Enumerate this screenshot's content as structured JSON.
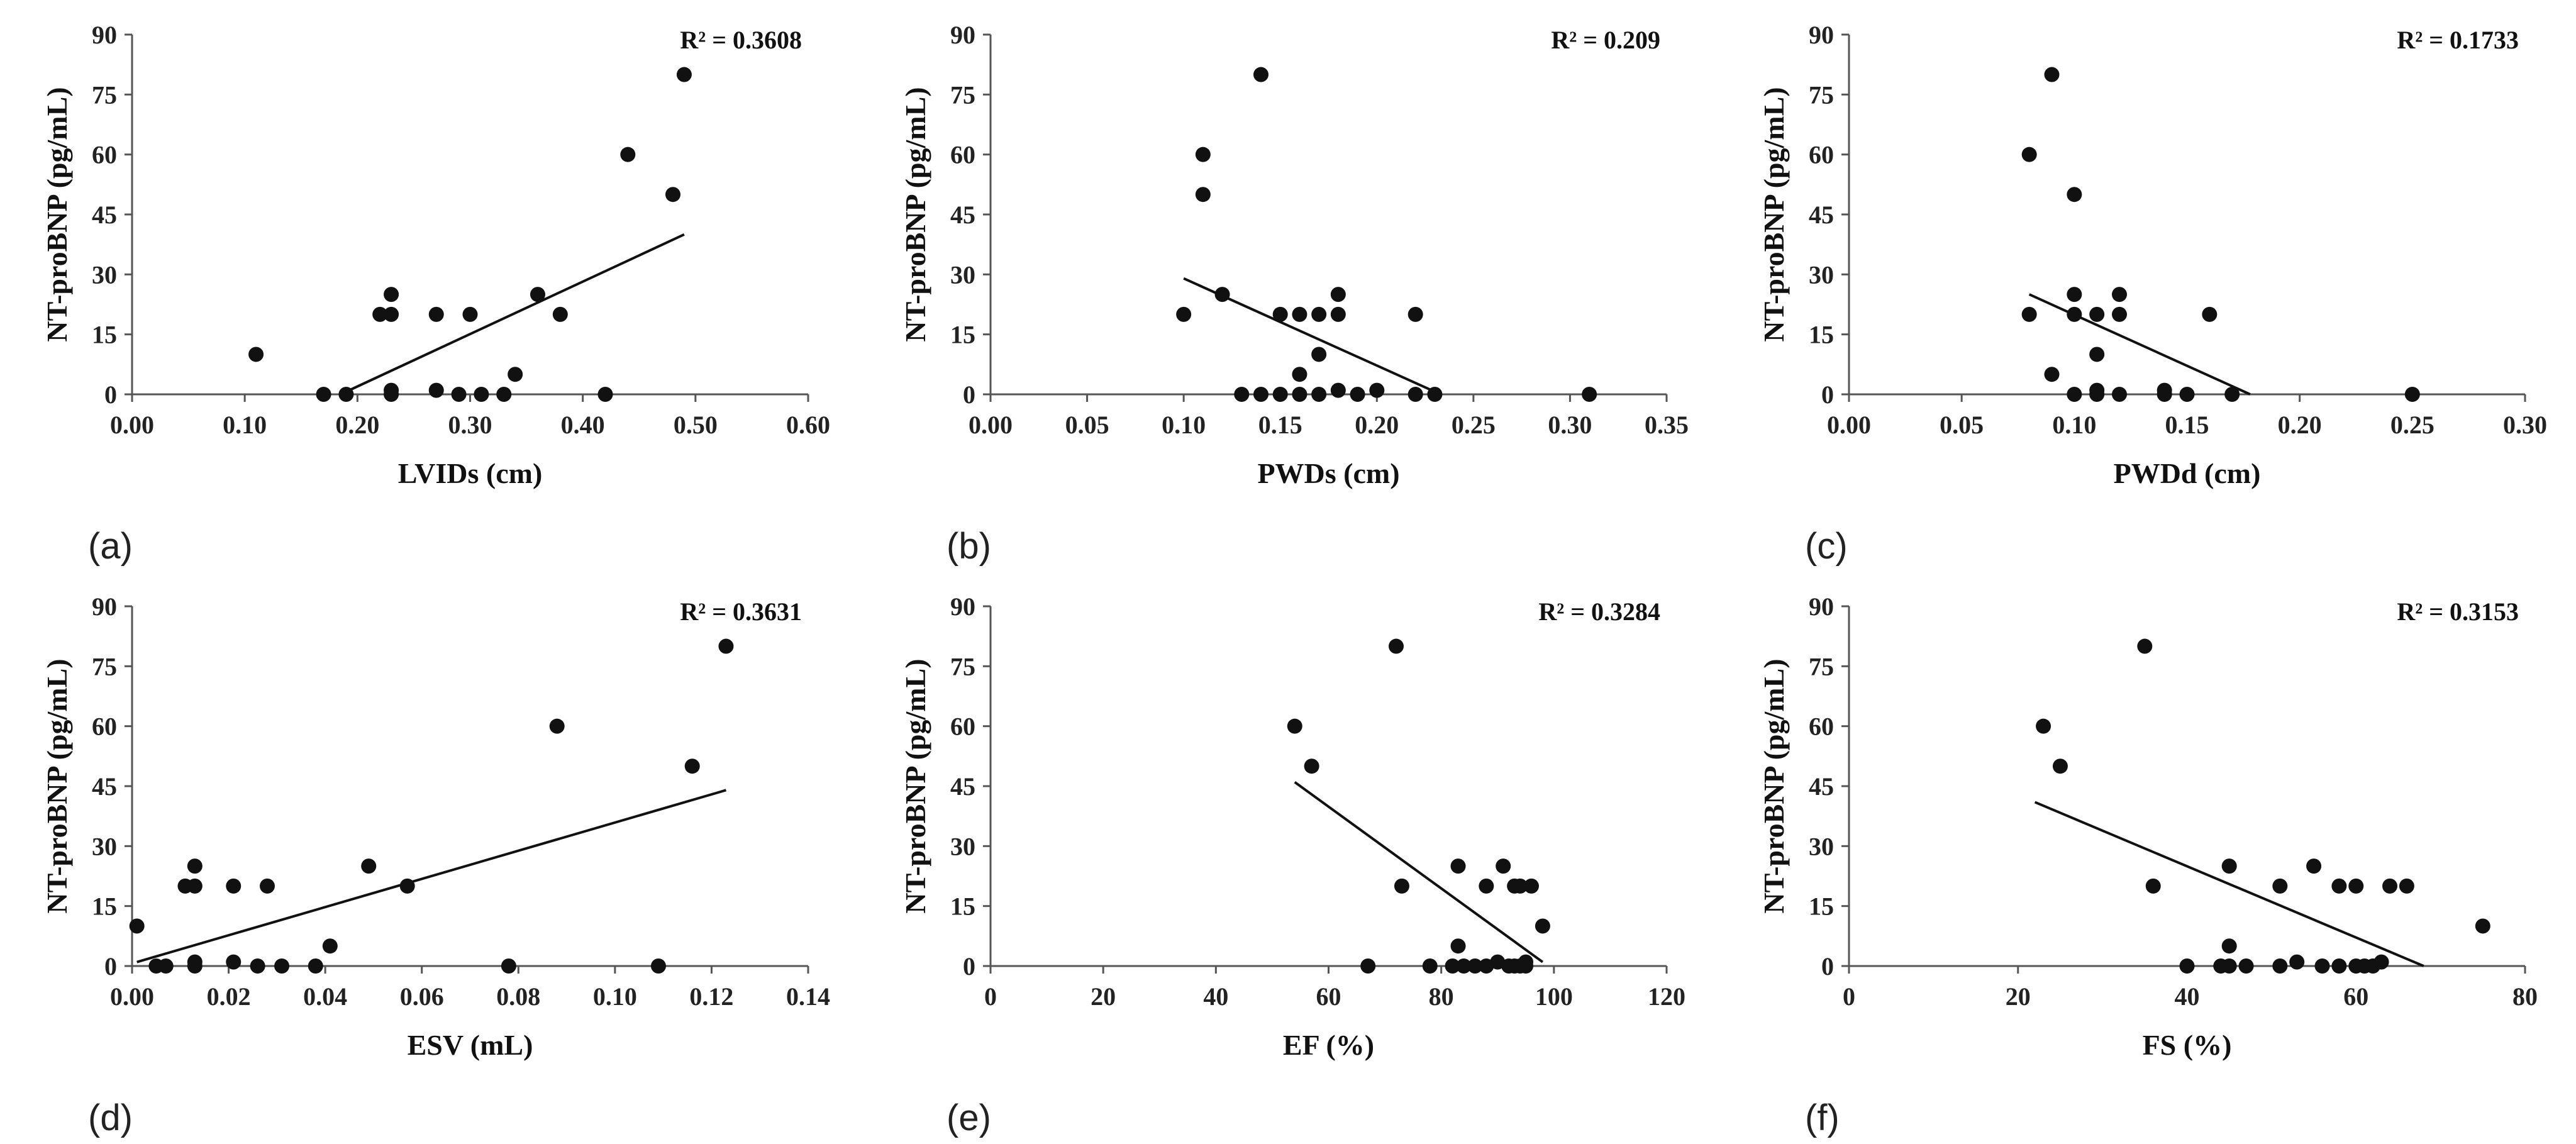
{
  "chart_data": [
    {
      "type": "scatter",
      "panel_label": "(a)",
      "xlabel": "LVIDs (cm)",
      "ylabel": "NT-proBNP (pg/mL)",
      "xlim": [
        0,
        0.6
      ],
      "ylim": [
        0,
        90
      ],
      "xticks": [
        "0.00",
        "0.10",
        "0.20",
        "0.30",
        "0.40",
        "0.50",
        "0.60"
      ],
      "yticks": [
        "0",
        "15",
        "30",
        "45",
        "60",
        "75",
        "90"
      ],
      "r2_text": "R² = 0.3608",
      "trendline": [
        [
          0.185,
          0
        ],
        [
          0.49,
          40
        ]
      ],
      "points": [
        [
          0.11,
          10
        ],
        [
          0.17,
          0
        ],
        [
          0.19,
          0
        ],
        [
          0.22,
          20
        ],
        [
          0.23,
          20
        ],
        [
          0.23,
          25
        ],
        [
          0.23,
          1
        ],
        [
          0.23,
          0
        ],
        [
          0.27,
          20
        ],
        [
          0.27,
          1
        ],
        [
          0.29,
          0
        ],
        [
          0.3,
          20
        ],
        [
          0.31,
          0
        ],
        [
          0.33,
          0
        ],
        [
          0.34,
          5
        ],
        [
          0.36,
          25
        ],
        [
          0.38,
          20
        ],
        [
          0.42,
          0
        ],
        [
          0.44,
          60
        ],
        [
          0.48,
          50
        ],
        [
          0.49,
          80
        ]
      ]
    },
    {
      "type": "scatter",
      "panel_label": "(b)",
      "xlabel": "PWDs (cm)",
      "ylabel": "NT-proBNP (pg/mL)",
      "xlim": [
        0,
        0.35
      ],
      "ylim": [
        0,
        90
      ],
      "xticks": [
        "0.00",
        "0.05",
        "0.10",
        "0.15",
        "0.20",
        "0.25",
        "0.30",
        "0.35"
      ],
      "yticks": [
        "0",
        "15",
        "30",
        "45",
        "60",
        "75",
        "90"
      ],
      "r2_text": "R² = 0.209",
      "trendline": [
        [
          0.1,
          29
        ],
        [
          0.233,
          0
        ]
      ],
      "points": [
        [
          0.1,
          20
        ],
        [
          0.11,
          60
        ],
        [
          0.11,
          50
        ],
        [
          0.12,
          25
        ],
        [
          0.13,
          0
        ],
        [
          0.14,
          80
        ],
        [
          0.14,
          0
        ],
        [
          0.15,
          20
        ],
        [
          0.15,
          0
        ],
        [
          0.16,
          20
        ],
        [
          0.16,
          5
        ],
        [
          0.16,
          0
        ],
        [
          0.17,
          20
        ],
        [
          0.17,
          10
        ],
        [
          0.17,
          0
        ],
        [
          0.18,
          25
        ],
        [
          0.18,
          20
        ],
        [
          0.18,
          1
        ],
        [
          0.19,
          0
        ],
        [
          0.2,
          1
        ],
        [
          0.22,
          20
        ],
        [
          0.22,
          0
        ],
        [
          0.23,
          0
        ],
        [
          0.31,
          0
        ]
      ]
    },
    {
      "type": "scatter",
      "panel_label": "(c)",
      "xlabel": "PWDd (cm)",
      "ylabel": "NT-proBNP (pg/mL)",
      "xlim": [
        0,
        0.3
      ],
      "ylim": [
        0,
        90
      ],
      "xticks": [
        "0.00",
        "0.05",
        "0.10",
        "0.15",
        "0.20",
        "0.25",
        "0.30"
      ],
      "yticks": [
        "0",
        "15",
        "30",
        "45",
        "60",
        "75",
        "90"
      ],
      "r2_text": "R² = 0.1733",
      "trendline": [
        [
          0.08,
          25
        ],
        [
          0.178,
          0
        ]
      ],
      "points": [
        [
          0.08,
          60
        ],
        [
          0.08,
          20
        ],
        [
          0.09,
          80
        ],
        [
          0.09,
          5
        ],
        [
          0.1,
          50
        ],
        [
          0.1,
          25
        ],
        [
          0.1,
          20
        ],
        [
          0.1,
          0
        ],
        [
          0.11,
          20
        ],
        [
          0.11,
          10
        ],
        [
          0.11,
          1
        ],
        [
          0.11,
          0
        ],
        [
          0.12,
          25
        ],
        [
          0.12,
          20
        ],
        [
          0.12,
          0
        ],
        [
          0.14,
          1
        ],
        [
          0.14,
          0
        ],
        [
          0.15,
          0
        ],
        [
          0.16,
          20
        ],
        [
          0.17,
          0
        ],
        [
          0.25,
          0
        ]
      ]
    },
    {
      "type": "scatter",
      "panel_label": "(d)",
      "xlabel": "ESV (mL)",
      "ylabel": "NT-proBNP (pg/mL)",
      "xlim": [
        0,
        0.14
      ],
      "ylim": [
        0,
        90
      ],
      "xticks": [
        "0.00",
        "0.02",
        "0.04",
        "0.06",
        "0.08",
        "0.10",
        "0.12",
        "0.14"
      ],
      "yticks": [
        "0",
        "15",
        "30",
        "45",
        "60",
        "75",
        "90"
      ],
      "r2_text": "R² = 0.3631",
      "trendline": [
        [
          0.001,
          1
        ],
        [
          0.123,
          44
        ]
      ],
      "points": [
        [
          0.001,
          10
        ],
        [
          0.005,
          0
        ],
        [
          0.007,
          0
        ],
        [
          0.011,
          20
        ],
        [
          0.013,
          25
        ],
        [
          0.013,
          20
        ],
        [
          0.013,
          1
        ],
        [
          0.013,
          0
        ],
        [
          0.021,
          20
        ],
        [
          0.021,
          1
        ],
        [
          0.026,
          0
        ],
        [
          0.028,
          20
        ],
        [
          0.031,
          0
        ],
        [
          0.038,
          0
        ],
        [
          0.041,
          5
        ],
        [
          0.049,
          25
        ],
        [
          0.057,
          20
        ],
        [
          0.078,
          0
        ],
        [
          0.088,
          60
        ],
        [
          0.109,
          0
        ],
        [
          0.116,
          50
        ],
        [
          0.123,
          80
        ]
      ]
    },
    {
      "type": "scatter",
      "panel_label": "(e)",
      "xlabel": "EF (%)",
      "ylabel": "NT-proBNP (pg/mL)",
      "xlim": [
        0,
        120
      ],
      "ylim": [
        0,
        90
      ],
      "xticks": [
        "0",
        "20",
        "40",
        "60",
        "80",
        "100",
        "120"
      ],
      "yticks": [
        "0",
        "15",
        "30",
        "45",
        "60",
        "75",
        "90"
      ],
      "r2_text": "R² = 0.3284",
      "trendline": [
        [
          54,
          46
        ],
        [
          98,
          1
        ]
      ],
      "points": [
        [
          54,
          60
        ],
        [
          57,
          50
        ],
        [
          67,
          0
        ],
        [
          72,
          80
        ],
        [
          73,
          20
        ],
        [
          78,
          0
        ],
        [
          82,
          0
        ],
        [
          83,
          25
        ],
        [
          83,
          5
        ],
        [
          84,
          0
        ],
        [
          86,
          0
        ],
        [
          88,
          20
        ],
        [
          88,
          0
        ],
        [
          90,
          1
        ],
        [
          91,
          25
        ],
        [
          92,
          0
        ],
        [
          93,
          20
        ],
        [
          93,
          0
        ],
        [
          94,
          20
        ],
        [
          94,
          0
        ],
        [
          95,
          1
        ],
        [
          95,
          0
        ],
        [
          96,
          20
        ],
        [
          98,
          10
        ]
      ]
    },
    {
      "type": "scatter",
      "panel_label": "(f)",
      "xlabel": "FS (%)",
      "ylabel": "NT-proBNP (pg/mL)",
      "xlim": [
        0,
        80
      ],
      "ylim": [
        0,
        90
      ],
      "xticks": [
        "0",
        "20",
        "40",
        "60",
        "80"
      ],
      "yticks": [
        "0",
        "15",
        "30",
        "45",
        "60",
        "75",
        "90"
      ],
      "r2_text": "R² = 0.3153",
      "trendline": [
        [
          22,
          41
        ],
        [
          68,
          0
        ]
      ],
      "points": [
        [
          23,
          60
        ],
        [
          25,
          50
        ],
        [
          35,
          80
        ],
        [
          36,
          20
        ],
        [
          40,
          0
        ],
        [
          44,
          0
        ],
        [
          45,
          25
        ],
        [
          45,
          5
        ],
        [
          45,
          0
        ],
        [
          47,
          0
        ],
        [
          51,
          20
        ],
        [
          51,
          0
        ],
        [
          53,
          1
        ],
        [
          55,
          25
        ],
        [
          56,
          0
        ],
        [
          58,
          20
        ],
        [
          58,
          0
        ],
        [
          60,
          20
        ],
        [
          60,
          0
        ],
        [
          61,
          0
        ],
        [
          62,
          0
        ],
        [
          63,
          1
        ],
        [
          64,
          20
        ],
        [
          66,
          20
        ],
        [
          75,
          10
        ]
      ]
    }
  ]
}
